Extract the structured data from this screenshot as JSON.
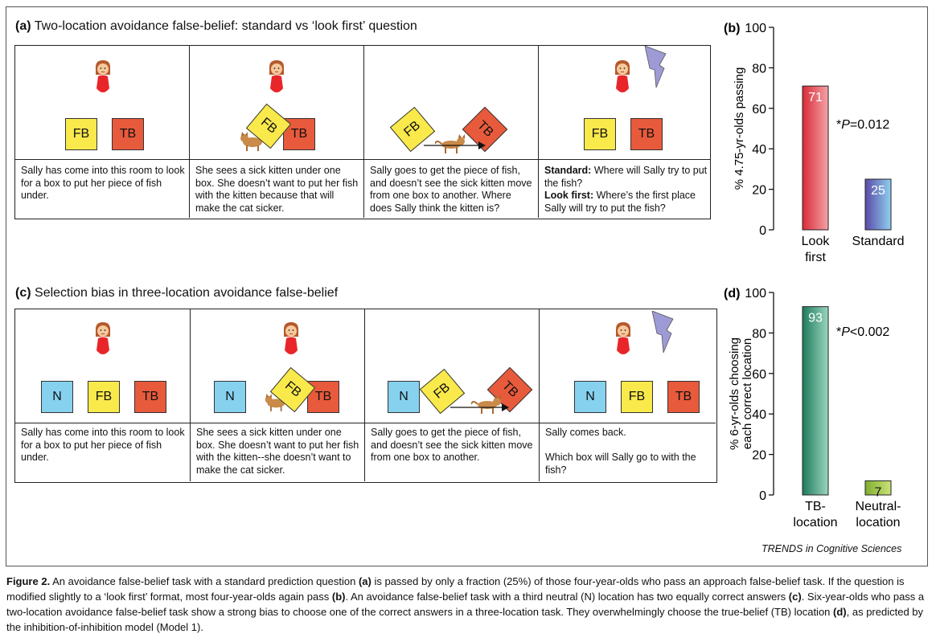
{
  "panel_a": {
    "letter": "(a)",
    "title": "Two-location avoidance false-belief: standard vs ‘look first’ question",
    "boxes": {
      "fb": "FB",
      "tb": "TB"
    },
    "captions": [
      "Sally has come into this room to look for a box to put her piece of fish under.",
      "She sees a sick kitten under one box. She doesn’t want to put her fish with the kitten because that will make the cat sicker.",
      "Sally goes to get the piece of fish, and doesn’t see the sick kitten move from one box to another. Where does Sally think the kitten is?"
    ],
    "caption4": {
      "standard_label": "Standard:",
      "standard_text": " Where will Sally try to put the fish?",
      "lookfirst_label": "Look first:",
      "lookfirst_text": " Where’s the first place Sally will try to put the fish?"
    }
  },
  "panel_c": {
    "letter": "(c)",
    "title": "Selection bias in three-location avoidance false-belief",
    "boxes": {
      "n": "N",
      "fb": "FB",
      "tb": "TB"
    },
    "captions": [
      "Sally has come into this room to look for a box to put her piece of fish under.",
      "She sees a sick kitten under one box. She doesn’t want to put her fish with the kitten--she doesn’t want to make the cat sicker.",
      "Sally goes to get the piece of fish, and doesn’t see the sick kitten move from one box to another."
    ],
    "caption4_line1": "Sally comes back.",
    "caption4_line2": "Which box will Sally go to with the fish?"
  },
  "chart_data": [
    {
      "panel": "(b)",
      "type": "bar",
      "ylabel": "% 4.75-yr-olds passing",
      "ylim": [
        0,
        100
      ],
      "yticks": [
        "0",
        "20",
        "40",
        "60",
        "80",
        "100"
      ],
      "categories": [
        [
          "Look",
          "first"
        ],
        [
          "Standard"
        ]
      ],
      "values": [
        71,
        25
      ],
      "value_labels": [
        "71",
        "25"
      ],
      "colors": [
        [
          "#d82a36",
          "#f4a3a8"
        ],
        [
          "#5a4aa8",
          "#8fd0ef"
        ]
      ],
      "annotation": {
        "star": "*",
        "p": "P",
        "rest": "=0.012"
      }
    },
    {
      "panel": "(d)",
      "type": "bar",
      "ylabel": [
        "% 6-yr-olds choosing",
        "each correct location"
      ],
      "ylim": [
        0,
        100
      ],
      "yticks": [
        "0",
        "20",
        "40",
        "60",
        "80",
        "100"
      ],
      "categories": [
        [
          "TB-",
          "location"
        ],
        [
          "Neutral-",
          "location"
        ]
      ],
      "values": [
        93,
        7
      ],
      "value_labels": [
        "93",
        "7"
      ],
      "colors": [
        [
          "#1e7a5a",
          "#9ad6c0"
        ],
        [
          "#7fae2e",
          "#cbe27a"
        ]
      ],
      "annotation": {
        "star": "*",
        "p": "P",
        "rest": "<0.002"
      }
    }
  ],
  "trends": "TRENDS in Cognitive Sciences",
  "figure_caption": {
    "label": "Figure 2.",
    "t1": " An avoidance false-belief task with a standard prediction question ",
    "a": "(a)",
    "t2": " is passed by only a fraction (25%) of those four-year-olds who pass an approach false-belief task. If the question is modified slightly to a ‘look first’ format, most four-year-olds again pass ",
    "b": "(b)",
    "t3": ". An avoidance false-belief task with a third neutral (N) location has two equally correct answers ",
    "c": "(c)",
    "t4": ". Six-year-olds who pass a two-location avoidance false-belief task show a strong bias to choose one of the correct answers in a three-location task. They overwhelmingly choose the true-belief (TB) location ",
    "d": "(d)",
    "t5": ", as predicted by the inhibition-of-inhibition model (Model 1)."
  }
}
